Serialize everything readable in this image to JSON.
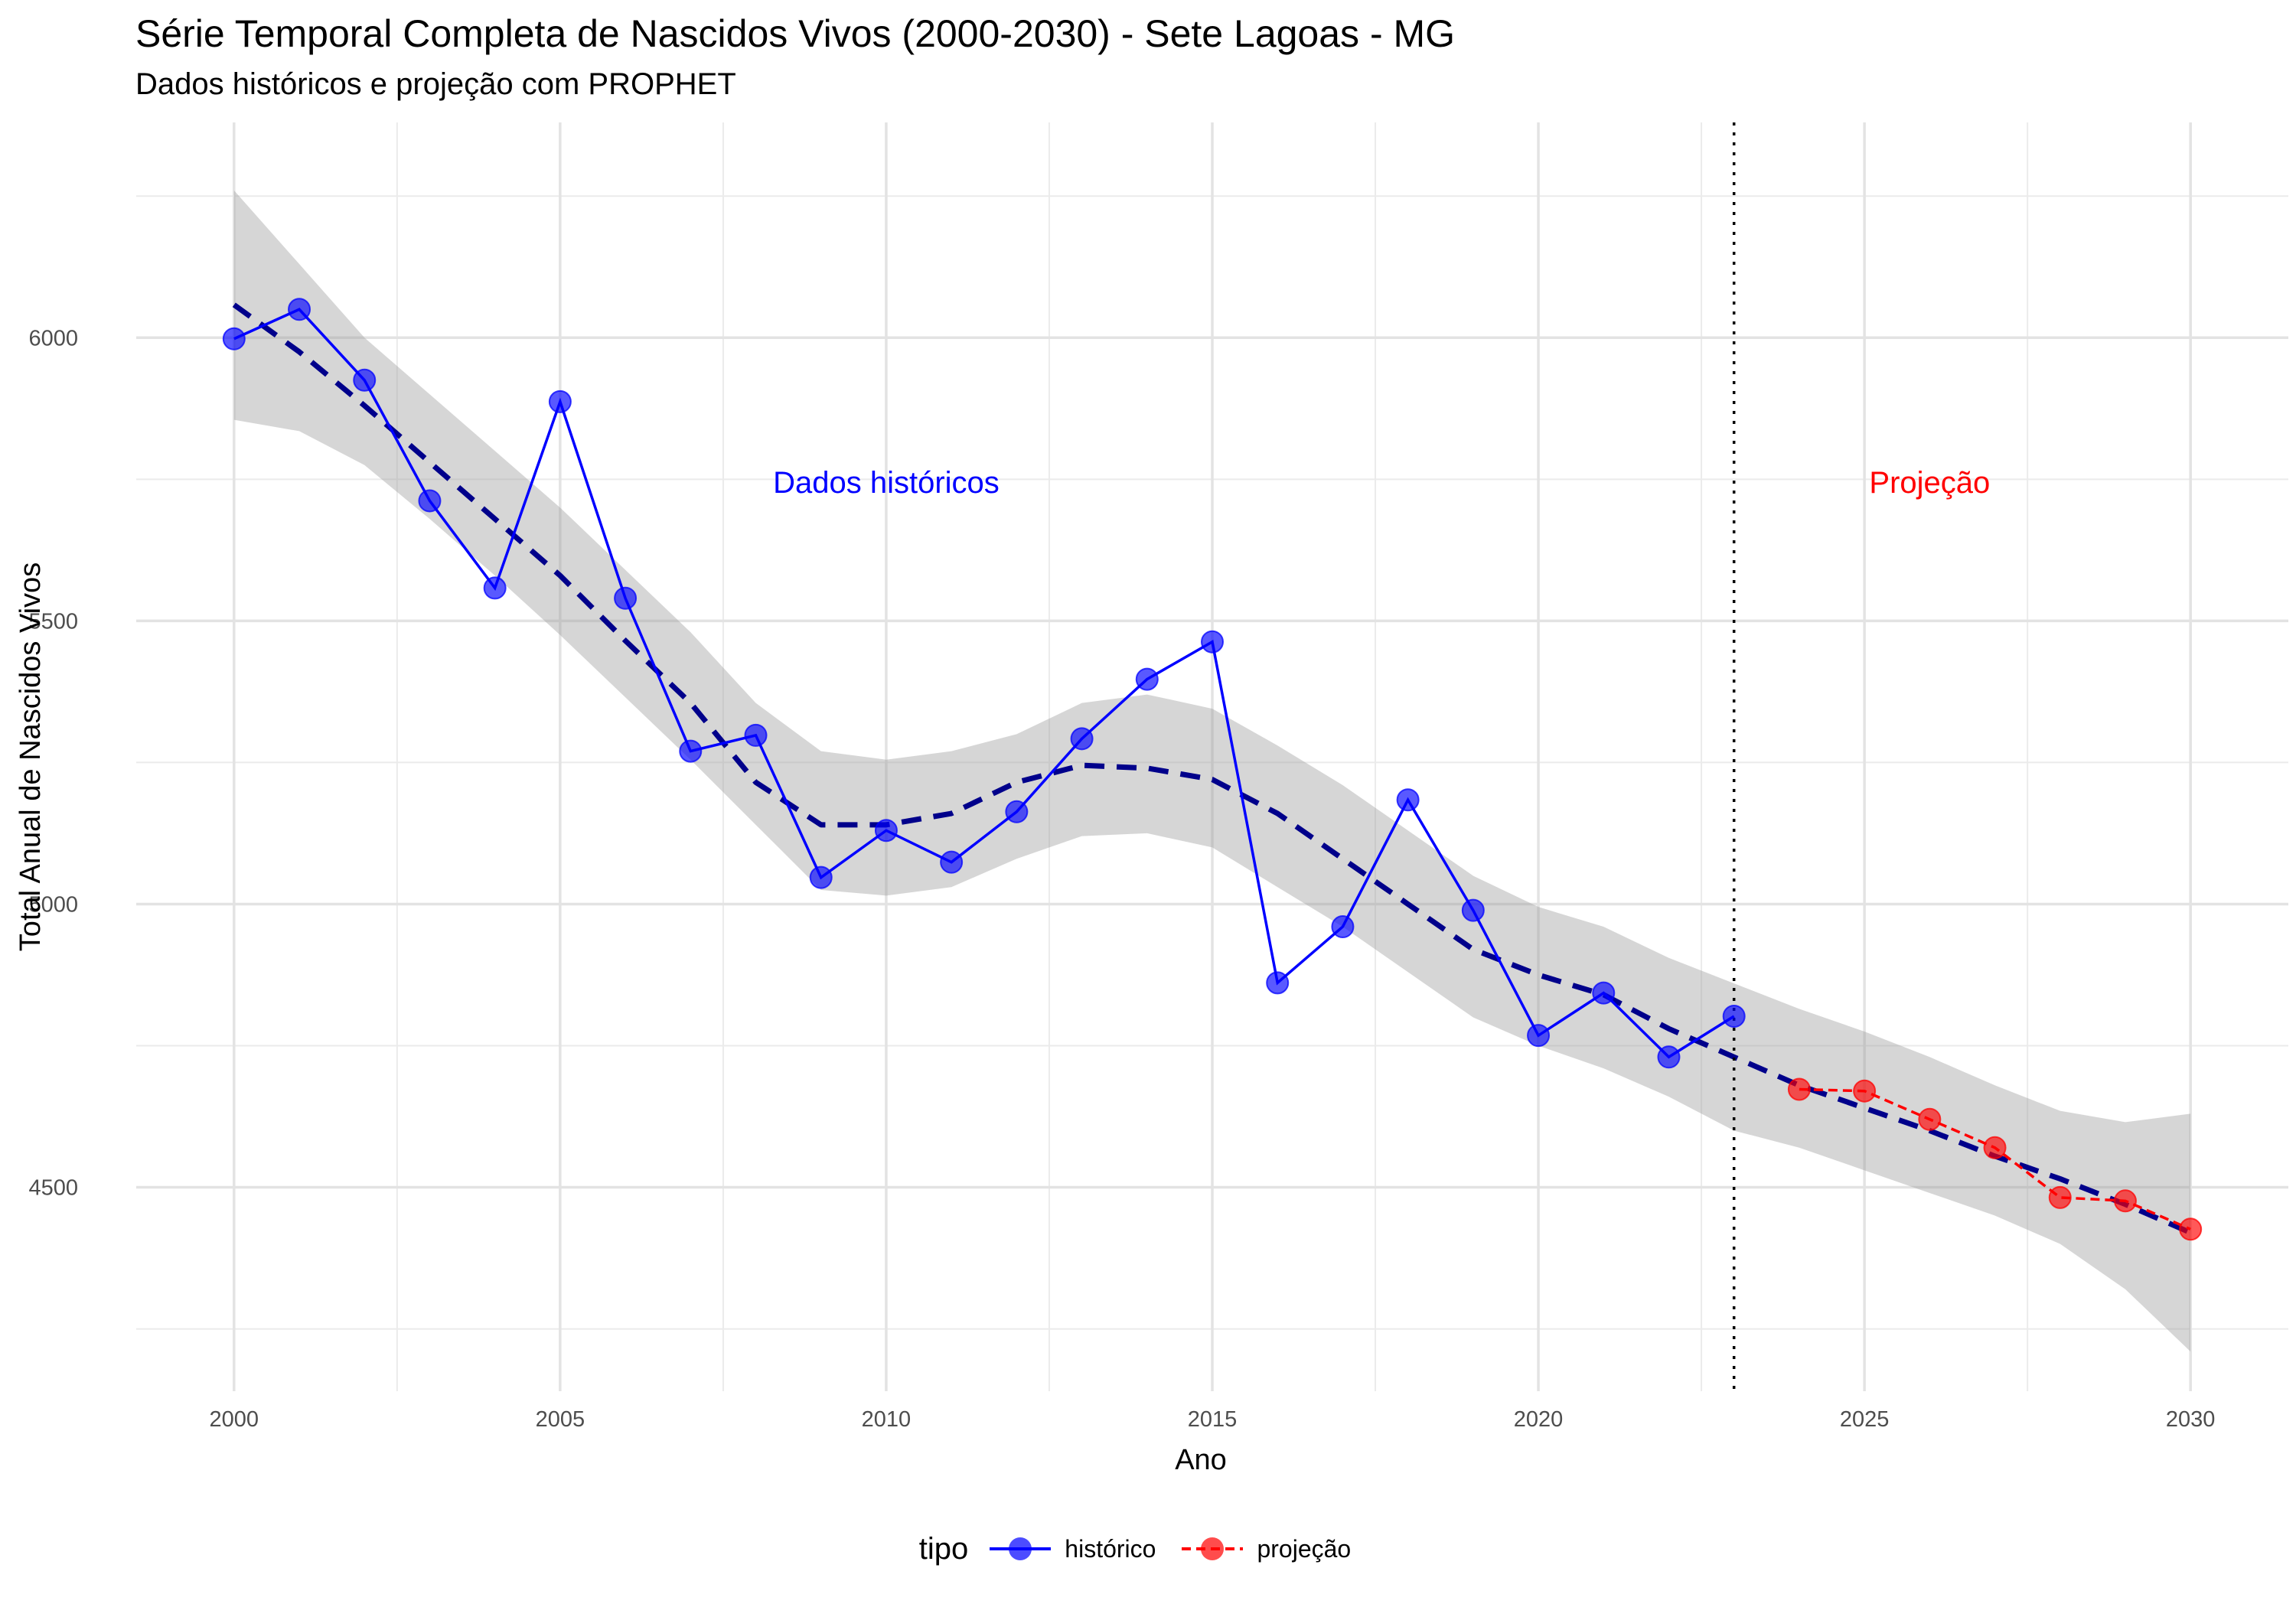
{
  "chart_data": {
    "type": "line",
    "title": "Série Temporal Completa de Nascidos Vivos (2000-2030) -  Sete Lagoas - MG",
    "subtitle": "Dados históricos e projeção com PROPHET",
    "xlabel": "Ano",
    "ylabel": "Total Anual de Nascidos Vivos",
    "xlim": [
      1998.5,
      2031.5
    ],
    "ylim": [
      4140,
      6380
    ],
    "x_ticks": [
      2000,
      2005,
      2010,
      2015,
      2020,
      2025,
      2030
    ],
    "y_ticks": [
      4500,
      5000,
      5500,
      6000
    ],
    "grid": true,
    "legend": {
      "title": "tipo",
      "position": "bottom"
    },
    "cutoff_x": 2023,
    "annotations": [
      {
        "text": "Dados históricos",
        "x": 2010,
        "y": 5745,
        "color": "#0000FF"
      },
      {
        "text": "Projeção",
        "x": 2026,
        "y": 5745,
        "color": "#FF0000"
      }
    ],
    "series": [
      {
        "name": "histórico",
        "color": "#0000FF",
        "x": [
          2000,
          2001,
          2002,
          2003,
          2004,
          2005,
          2006,
          2007,
          2008,
          2009,
          2010,
          2011,
          2012,
          2013,
          2014,
          2015,
          2016,
          2017,
          2018,
          2019,
          2020,
          2021,
          2022,
          2023
        ],
        "y": [
          5998,
          6050,
          5925,
          5712,
          5558,
          5887,
          5540,
          5270,
          5298,
          5047,
          5130,
          5074,
          5163,
          5292,
          5397,
          5463,
          4861,
          4960,
          5184,
          4989,
          4768,
          4843,
          4730,
          4802
        ]
      },
      {
        "name": "projeção",
        "color": "#FF0000",
        "x": [
          2024,
          2025,
          2026,
          2027,
          2028,
          2029,
          2030
        ],
        "y": [
          4673,
          4670,
          4620,
          4570,
          4482,
          4476,
          4426
        ]
      }
    ],
    "trend": {
      "color": "#00008B",
      "x": [
        2000,
        2001,
        2002,
        2003,
        2004,
        2005,
        2006,
        2007,
        2008,
        2009,
        2010,
        2011,
        2012,
        2013,
        2014,
        2015,
        2016,
        2017,
        2018,
        2019,
        2020,
        2021,
        2022,
        2023,
        2024,
        2025,
        2026,
        2027,
        2028,
        2029,
        2030
      ],
      "y": [
        6058,
        5975,
        5880,
        5780,
        5680,
        5580,
        5465,
        5355,
        5215,
        5140,
        5140,
        5160,
        5215,
        5245,
        5240,
        5220,
        5160,
        5080,
        5000,
        4920,
        4875,
        4840,
        4780,
        4730,
        4680,
        4640,
        4600,
        4555,
        4515,
        4470,
        4420
      ]
    },
    "ribbon": {
      "x": [
        2000,
        2001,
        2002,
        2003,
        2004,
        2005,
        2006,
        2007,
        2008,
        2009,
        2010,
        2011,
        2012,
        2013,
        2014,
        2015,
        2016,
        2017,
        2018,
        2019,
        2020,
        2021,
        2022,
        2023,
        2024,
        2025,
        2026,
        2027,
        2028,
        2029,
        2030
      ],
      "lower": [
        5855,
        5835,
        5775,
        5680,
        5580,
        5475,
        5365,
        5255,
        5140,
        5025,
        5015,
        5030,
        5080,
        5120,
        5125,
        5100,
        5030,
        4960,
        4880,
        4800,
        4750,
        4710,
        4660,
        4600,
        4570,
        4530,
        4490,
        4450,
        4400,
        4320,
        4210
      ],
      "upper": [
        6260,
        6130,
        6000,
        5900,
        5800,
        5700,
        5590,
        5480,
        5355,
        5270,
        5255,
        5270,
        5300,
        5355,
        5370,
        5345,
        5280,
        5210,
        5130,
        5050,
        4995,
        4960,
        4905,
        4860,
        4815,
        4775,
        4730,
        4680,
        4635,
        4615,
        4630
      ]
    }
  }
}
